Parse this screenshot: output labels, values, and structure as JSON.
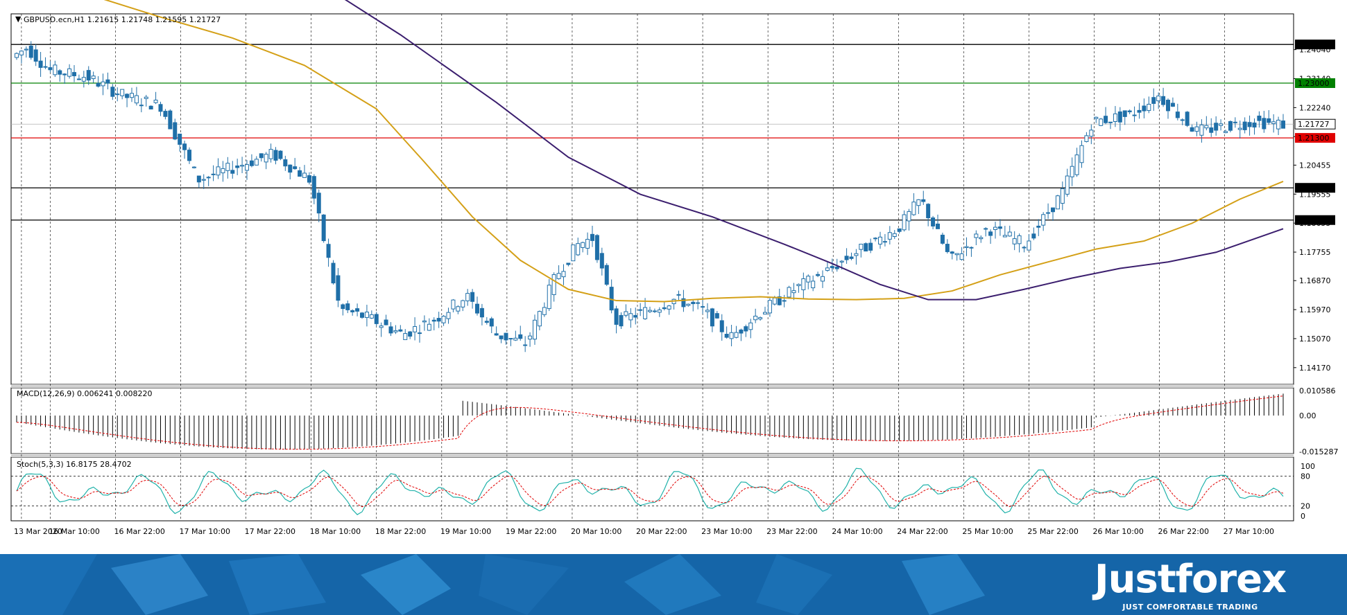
{
  "chart_data": [
    {
      "type": "candlestick",
      "title": "GBPUSD.ecn,H1  1.21615 1.21748 1.21595 1.21727",
      "symbol": "GBPUSD.ecn",
      "timeframe": "H1",
      "ohlc_header": {
        "open": 1.21615,
        "high": 1.21748,
        "low": 1.21595,
        "close": 1.21727
      },
      "ylim": [
        1.1365,
        1.2515
      ],
      "y_tick_labels": [
        "1.24040",
        "1.23140",
        "1.22240",
        "1.21340",
        "1.20455",
        "1.19555",
        "1.18655",
        "1.17755",
        "1.16870",
        "1.15970",
        "1.15070",
        "1.14170"
      ],
      "y_ticks": [
        1.2404,
        1.2314,
        1.2224,
        1.2134,
        1.20455,
        1.19555,
        1.18655,
        1.17755,
        1.1687,
        1.1597,
        1.1507,
        1.1417
      ],
      "x_tick_labels": [
        "13 Mar 2020",
        "16 Mar 10:00",
        "16 Mar 22:00",
        "17 Mar 10:00",
        "17 Mar 22:00",
        "18 Mar 10:00",
        "18 Mar 22:00",
        "19 Mar 10:00",
        "19 Mar 22:00",
        "20 Mar 10:00",
        "20 Mar 22:00",
        "23 Mar 10:00",
        "23 Mar 22:00",
        "24 Mar 10:00",
        "24 Mar 22:00",
        "25 Mar 10:00",
        "25 Mar 22:00",
        "26 Mar 10:00",
        "26 Mar 22:00",
        "27 Mar 10:00"
      ],
      "current_price": {
        "value": 1.21727,
        "label": "1.21727"
      },
      "horizontal_levels": [
        {
          "value": 1.242,
          "label": "1.24200",
          "color": "#000000"
        },
        {
          "value": 1.23,
          "label": "1.23000",
          "color": "#008000"
        },
        {
          "value": 1.213,
          "label": "1.21300",
          "color": "#e00000"
        },
        {
          "value": 1.1975,
          "label": "1.19750",
          "color": "#000000"
        },
        {
          "value": 1.1875,
          "label": "1.18750",
          "color": "#000000"
        }
      ],
      "moving_averages": [
        {
          "color": "#d4a017",
          "x": [
            0,
            15,
            30,
            45,
            60,
            75,
            85,
            95,
            105,
            115,
            125,
            135,
            145,
            155,
            165,
            175,
            185,
            195,
            205,
            215,
            225,
            235,
            245,
            255,
            264
          ],
          "values": [
            1.2645,
            1.2575,
            1.2505,
            1.244,
            1.2355,
            1.222,
            1.2055,
            1.1885,
            1.175,
            1.166,
            1.1625,
            1.1622,
            1.1632,
            1.1637,
            1.163,
            1.1628,
            1.1632,
            1.1655,
            1.1705,
            1.1745,
            1.1785,
            1.181,
            1.1865,
            1.194,
            1.1995
          ]
        },
        {
          "color": "#3b1e6e",
          "x": [
            0,
            20,
            40,
            60,
            80,
            100,
            115,
            130,
            145,
            160,
            170,
            180,
            190,
            200,
            210,
            220,
            230,
            240,
            250,
            264
          ],
          "values": [
            1.315,
            1.298,
            1.282,
            1.264,
            1.245,
            1.224,
            1.207,
            1.1955,
            1.1885,
            1.18,
            1.174,
            1.1675,
            1.1628,
            1.1628,
            1.166,
            1.1695,
            1.1725,
            1.1745,
            1.1775,
            1.1848
          ]
        }
      ]
    },
    {
      "type": "bar",
      "title": "MACD(12,26,9) 0.006241 0.008220",
      "y_tick_labels": [
        "0.010586",
        "0.00",
        "-0.015287"
      ],
      "y_ticks": [
        0.010586,
        0,
        -0.015287
      ]
    },
    {
      "type": "line",
      "title": "Stoch(5,3,3) 16.8175 28.4702",
      "ylim": [
        0,
        100
      ],
      "y_tick_labels": [
        "100",
        "80",
        "20",
        "0"
      ],
      "y_ticks": [
        100,
        80,
        20,
        0
      ],
      "levels": [
        80,
        20
      ]
    }
  ],
  "branding": {
    "name": "Justforex",
    "tagline": "JUST COMFORTABLE TRADING"
  },
  "colors": {
    "bull": "#ffffff",
    "bear": "#1f6fa8",
    "wick": "#1f6fa8",
    "signal": "#e00000",
    "stoch_main": "#20b2aa",
    "brand": "#1565a8"
  }
}
